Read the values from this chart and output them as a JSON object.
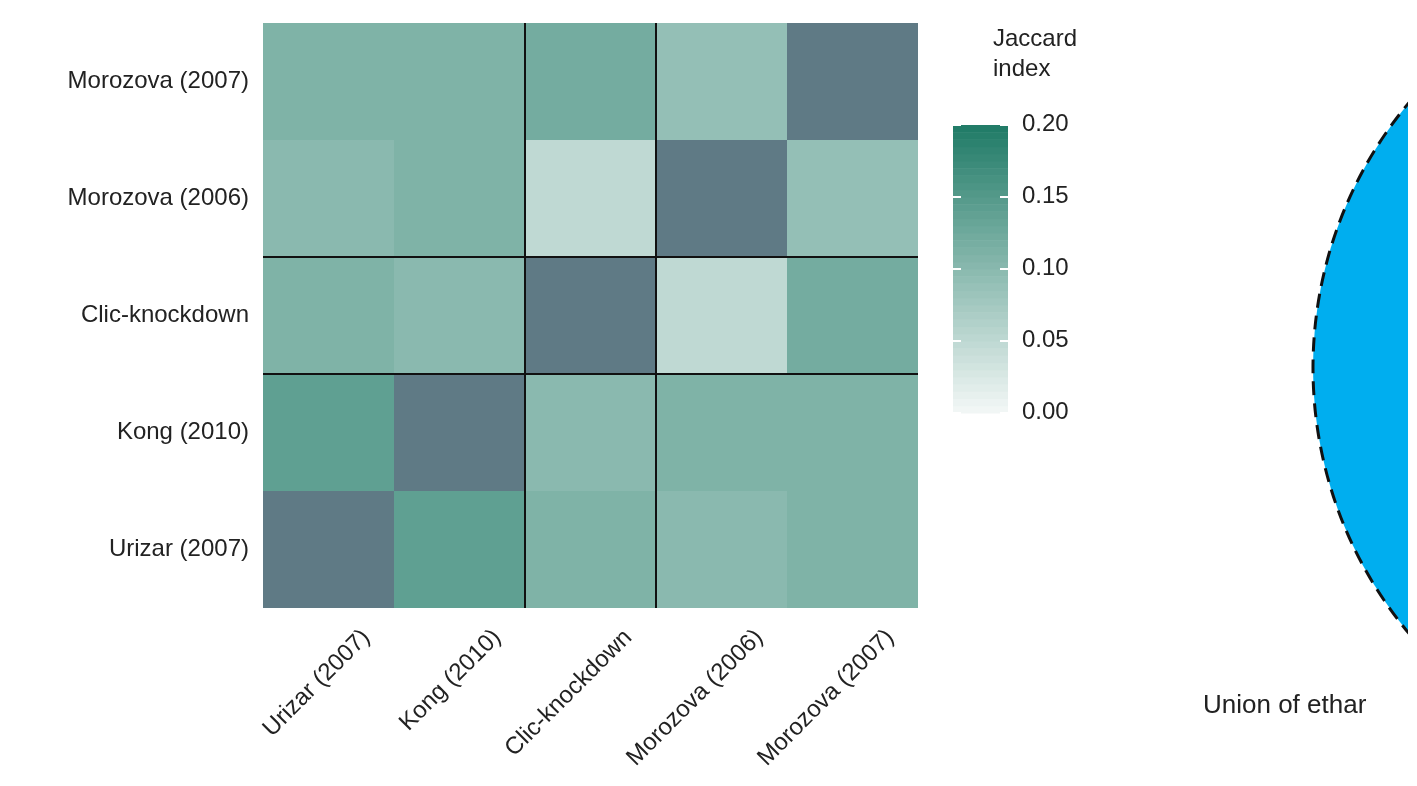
{
  "chart_data": {
    "type": "heatmap",
    "categories": [
      "Urizar (2007)",
      "Kong (2010)",
      "Clic-knockdown",
      "Morozova (2006)",
      "Morozova (2007)"
    ],
    "y_categories": [
      "Morozova (2007)",
      "Morozova (2006)",
      "Clic-knockdown",
      "Kong (2010)",
      "Urizar (2007)"
    ],
    "cells": [
      [
        0.11,
        0.11,
        0.12,
        0.09,
        null
      ],
      [
        0.1,
        0.11,
        0.05,
        null,
        0.09
      ],
      [
        0.11,
        0.1,
        null,
        0.05,
        0.12
      ],
      [
        0.14,
        null,
        0.1,
        0.11,
        0.11
      ],
      [
        null,
        0.14,
        0.11,
        0.1,
        0.11
      ]
    ],
    "clabel": "Jaccard index",
    "clim": [
      0,
      0.2
    ],
    "cticks": [
      {
        "value": 0,
        "label": "0.00"
      },
      {
        "value": 0.05,
        "label": "0.05"
      },
      {
        "value": 0.1,
        "label": "0.10"
      },
      {
        "value": 0.15,
        "label": "0.15"
      },
      {
        "value": 0.2,
        "label": "0.20"
      }
    ],
    "annotations": [
      "Union of ethar"
    ]
  }
}
